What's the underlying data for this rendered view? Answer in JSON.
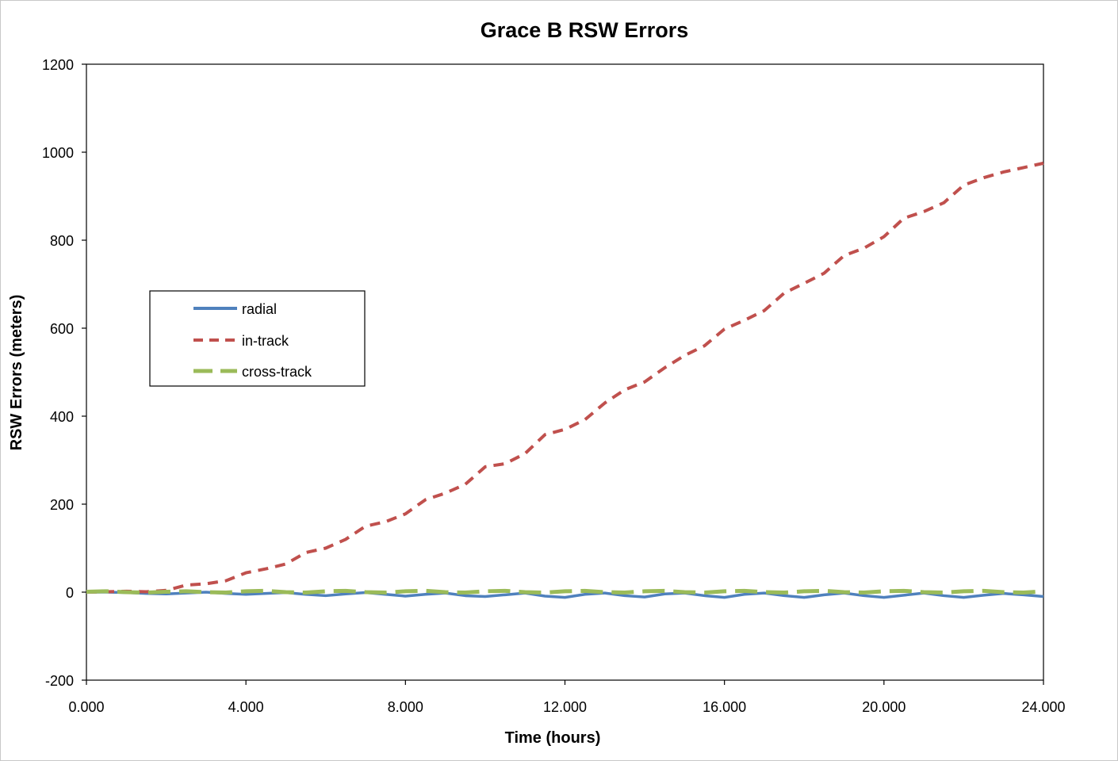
{
  "chart_data": {
    "type": "line",
    "title": "Grace B RSW Errors",
    "xlabel": "Time (hours)",
    "ylabel": "RSW Errors (meters)",
    "xlim": [
      0,
      24
    ],
    "ylim": [
      -200,
      1200
    ],
    "x_ticks": [
      "0.000",
      "4.000",
      "8.000",
      "12.000",
      "16.000",
      "20.000",
      "24.000"
    ],
    "y_ticks": [
      "-200",
      "0",
      "200",
      "400",
      "600",
      "800",
      "1000",
      "1200"
    ],
    "grid": false,
    "legend_position": "left, upper-middle",
    "series": [
      {
        "name": "radial",
        "color": "#4f81bd",
        "dash": "solid",
        "x": [
          0,
          0.5,
          1,
          1.5,
          2,
          2.5,
          3,
          3.5,
          4,
          4.5,
          5,
          5.5,
          6,
          6.5,
          7,
          7.5,
          8,
          8.5,
          9,
          9.5,
          10,
          10.5,
          11,
          11.5,
          12,
          12.5,
          13,
          13.5,
          14,
          14.5,
          15,
          15.5,
          16,
          16.5,
          17,
          17.5,
          18,
          18.5,
          19,
          19.5,
          20,
          20.5,
          21,
          21.5,
          22,
          22.5,
          23,
          23.5,
          24
        ],
        "y": [
          0,
          0,
          -1,
          -3,
          -4,
          -2,
          0,
          -3,
          -5,
          -3,
          -1,
          -5,
          -8,
          -4,
          -1,
          -5,
          -9,
          -5,
          -2,
          -8,
          -10,
          -6,
          -2,
          -9,
          -12,
          -5,
          -2,
          -8,
          -11,
          -4,
          -2,
          -8,
          -12,
          -5,
          -2,
          -8,
          -12,
          -6,
          -2,
          -8,
          -12,
          -7,
          -2,
          -8,
          -12,
          -7,
          -3,
          -6,
          -10
        ]
      },
      {
        "name": "in-track",
        "color": "#c0504d",
        "dash": "dashed",
        "x": [
          0,
          0.5,
          1,
          1.5,
          2,
          2.5,
          3,
          3.5,
          4,
          4.5,
          5,
          5.5,
          6,
          6.5,
          7,
          7.5,
          8,
          8.5,
          9,
          9.5,
          10,
          10.5,
          11,
          11.5,
          12,
          12.5,
          13,
          13.5,
          14,
          14.5,
          15,
          15.5,
          16,
          16.5,
          17,
          17.5,
          18,
          18.5,
          19,
          19.5,
          20,
          20.5,
          21,
          21.5,
          22,
          22.5,
          23,
          23.5,
          24
        ],
        "y": [
          0,
          1,
          2,
          1,
          4,
          16,
          19,
          26,
          44,
          53,
          64,
          90,
          100,
          120,
          150,
          160,
          178,
          210,
          225,
          245,
          285,
          292,
          315,
          358,
          370,
          392,
          430,
          460,
          478,
          510,
          538,
          560,
          598,
          618,
          640,
          680,
          702,
          725,
          765,
          782,
          808,
          850,
          865,
          885,
          925,
          942,
          955,
          965,
          975
        ]
      },
      {
        "name": "cross-track",
        "color": "#9bbb59",
        "dash": "longdash",
        "x": [
          0,
          0.5,
          1,
          1.5,
          2,
          2.5,
          3,
          3.5,
          4,
          4.5,
          5,
          5.5,
          6,
          6.5,
          7,
          7.5,
          8,
          8.5,
          9,
          9.5,
          10,
          10.5,
          11,
          11.5,
          12,
          12.5,
          13,
          13.5,
          14,
          14.5,
          15,
          15.5,
          16,
          16.5,
          17,
          17.5,
          18,
          18.5,
          19,
          19.5,
          20,
          20.5,
          21,
          21.5,
          22,
          22.5,
          23,
          23.5,
          24
        ],
        "y": [
          1,
          2,
          0,
          -1,
          1,
          2,
          0,
          -1,
          2,
          3,
          0,
          -1,
          2,
          3,
          0,
          -1,
          2,
          3,
          0,
          -1,
          2,
          3,
          0,
          -1,
          2,
          3,
          0,
          -1,
          2,
          3,
          0,
          -1,
          2,
          3,
          0,
          -1,
          2,
          3,
          0,
          -1,
          2,
          3,
          0,
          -1,
          2,
          3,
          0,
          -1,
          2
        ]
      }
    ]
  }
}
